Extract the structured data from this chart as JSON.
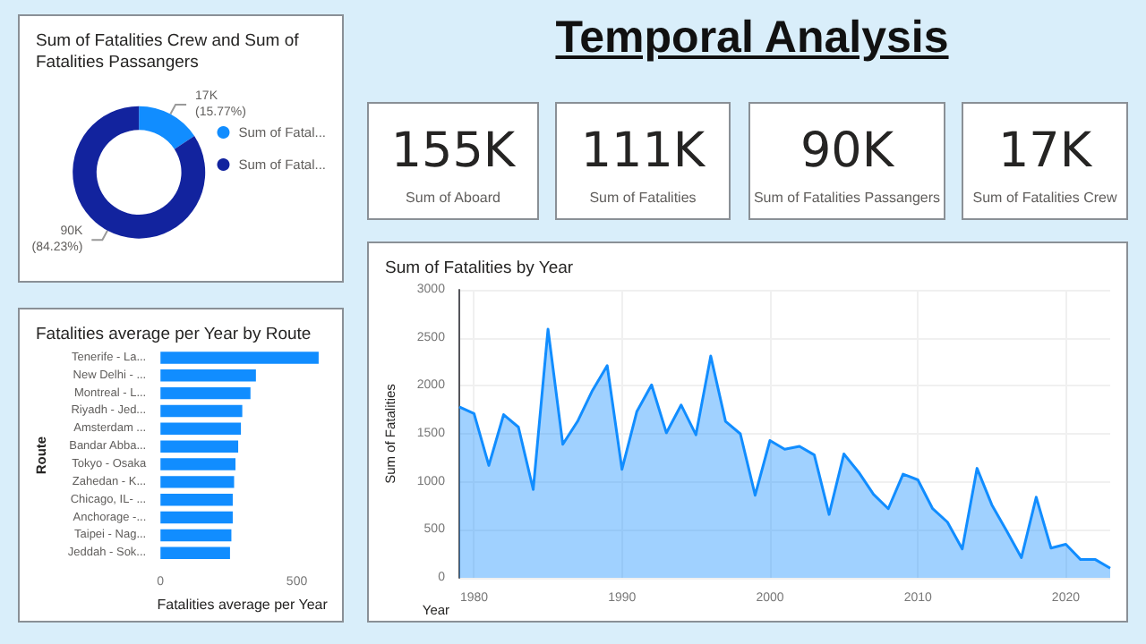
{
  "chart_data": [
    {
      "type": "donut",
      "title": "Sum of Fatalities Crew and Sum of Fatalities Passangers",
      "categories": [
        "Sum of Fatal...",
        "Sum of Fatal..."
      ],
      "values": [
        15.77,
        84.23
      ],
      "colors": [
        "#118dff",
        "#12239e"
      ],
      "value_labels": [
        "17K\n(15.77%)",
        "90K\n(84.23%)"
      ],
      "legend": "right"
    },
    {
      "type": "other",
      "title": "Temporal Analysis"
    },
    {
      "type": "other",
      "title": "155K",
      "subtitle": "Sum of Aboard"
    },
    {
      "type": "other",
      "title": "111K",
      "subtitle": "Sum of Fatalities"
    },
    {
      "type": "other",
      "title": "90K",
      "subtitle": "Sum of Fatalities Passangers"
    },
    {
      "type": "other",
      "title": "17K",
      "subtitle": "Sum of Fatalities Crew"
    },
    {
      "type": "bar",
      "orientation": "horizontal",
      "title": "Fatalities average per Year by Route",
      "xlabel": "Fatalities average per Year",
      "ylabel": "Route",
      "categories": [
        "Tenerife - La...",
        "New Delhi - ...",
        "Montreal - L...",
        "Riyadh - Jed...",
        "Amsterdam ...",
        "Bandar Abba...",
        "Tokyo - Osaka",
        "Zahedan - K...",
        "Chicago, IL- ...",
        "Anchorage -...",
        "Taipei - Nag...",
        "Jeddah - Sok..."
      ],
      "values": [
        580,
        350,
        330,
        300,
        295,
        285,
        275,
        270,
        265,
        265,
        260,
        255
      ],
      "color": "#118dff",
      "xlim": [
        0,
        600
      ],
      "xticks": [
        0,
        500
      ]
    },
    {
      "type": "area",
      "title": "Sum of Fatalities by Year",
      "xlabel": "Year",
      "ylabel": "Sum of Fatalities",
      "xlim": [
        1979,
        2023
      ],
      "xticks": [
        1980,
        1990,
        2000,
        2010,
        2020
      ],
      "ylim": [
        0,
        3000
      ],
      "yticks": [
        0,
        500,
        1000,
        1500,
        2000,
        2500,
        3000
      ],
      "grid": true,
      "x": [
        1979,
        1980,
        1981,
        1982,
        1983,
        1984,
        1985,
        1986,
        1987,
        1988,
        1989,
        1990,
        1991,
        1992,
        1993,
        1994,
        1995,
        1996,
        1997,
        1998,
        1999,
        2000,
        2001,
        2002,
        2003,
        2004,
        2005,
        2006,
        2007,
        2008,
        2009,
        2010,
        2011,
        2012,
        2013,
        2014,
        2015,
        2016,
        2017,
        2018,
        2019,
        2020,
        2021,
        2022,
        2023
      ],
      "series": [
        {
          "color": "#118dff",
          "values": [
            1780,
            1710,
            1170,
            1700,
            1570,
            920,
            2590,
            1390,
            1630,
            1950,
            2210,
            1130,
            1730,
            2010,
            1510,
            1800,
            1490,
            2310,
            1630,
            1500,
            860,
            1430,
            1340,
            1370,
            1280,
            660,
            1290,
            1100,
            870,
            720,
            1080,
            1020,
            720,
            580,
            300,
            1140,
            760,
            490,
            210,
            840,
            310,
            350,
            190,
            190,
            100
          ]
        }
      ]
    }
  ]
}
